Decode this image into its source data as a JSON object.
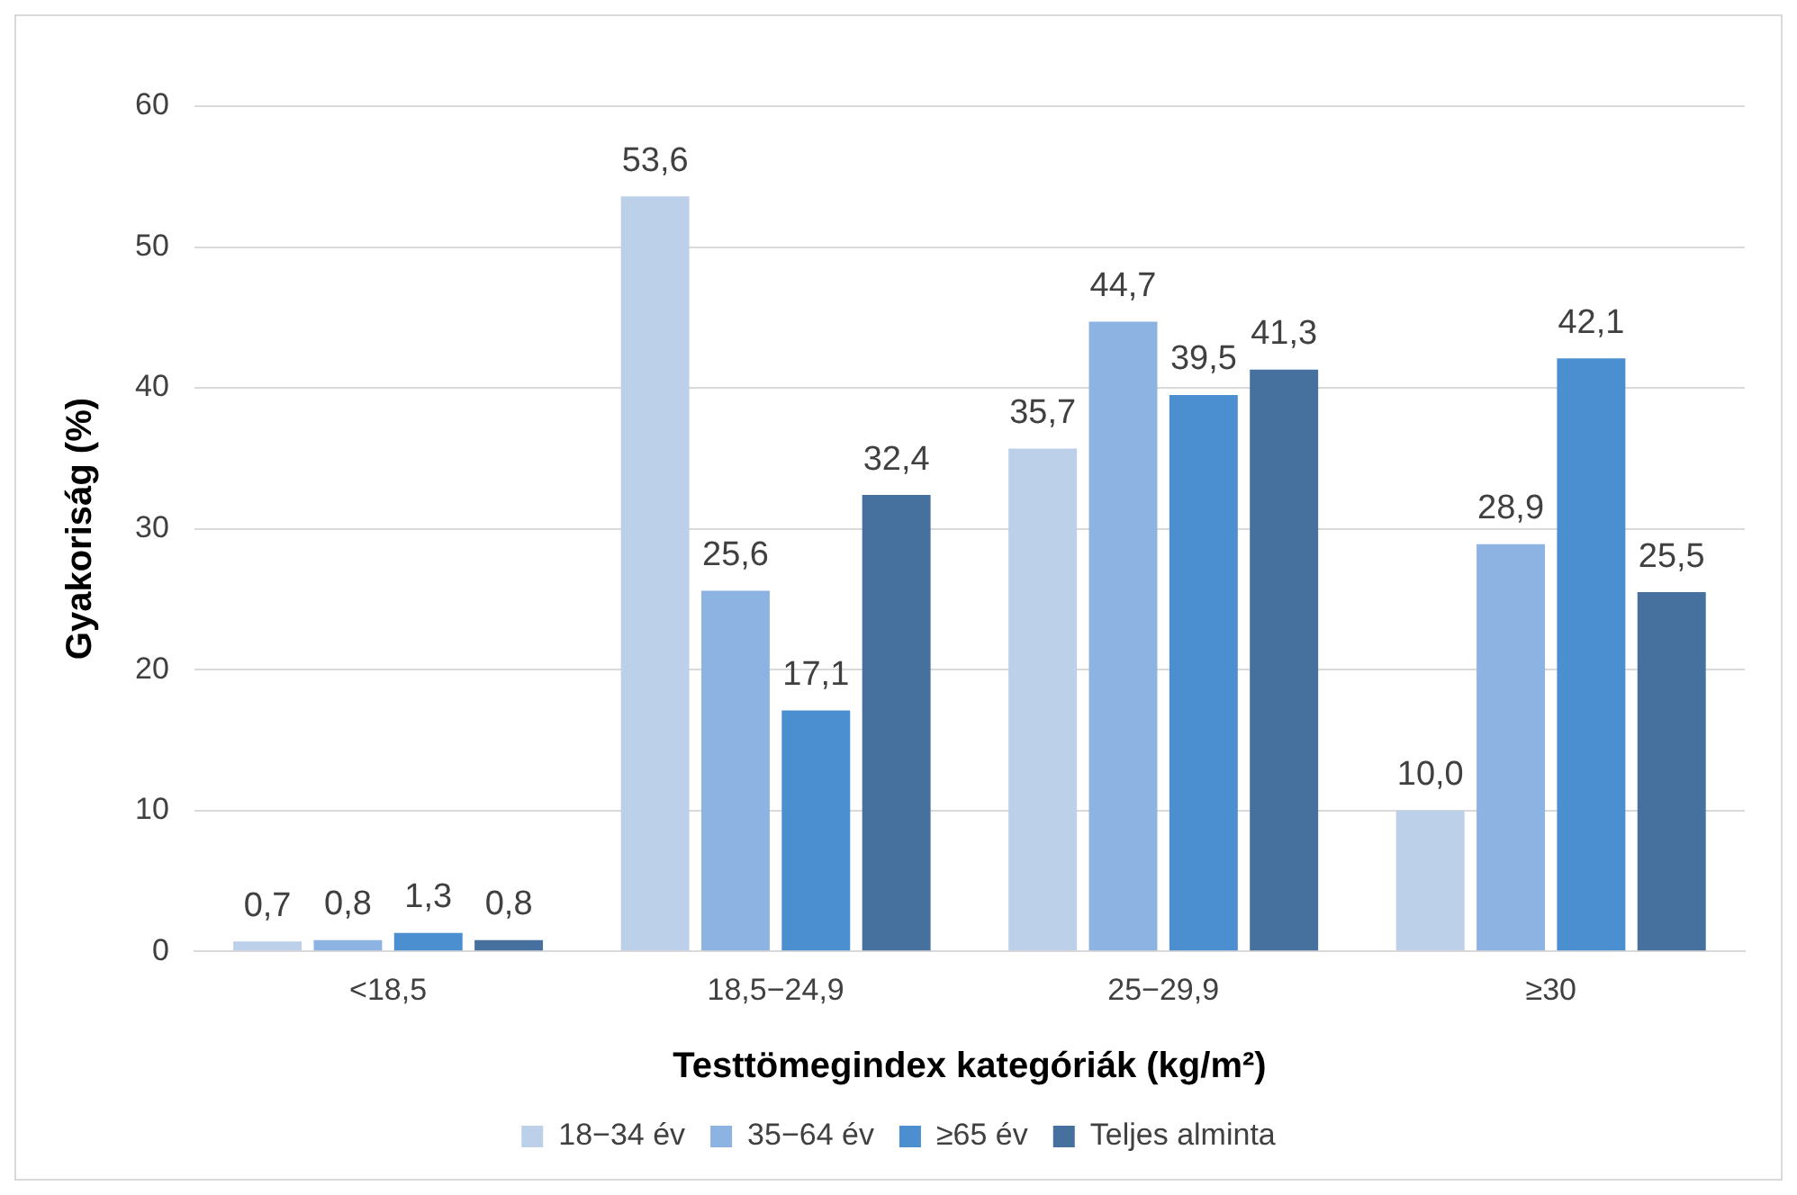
{
  "chart_data": {
    "type": "bar",
    "xlabel": "Testtömegindex kategóriák (kg/m²)",
    "ylabel": "Gyakoriság (%)",
    "categories": [
      "<18,5",
      "18,5−24,9",
      "25−29,9",
      "≥30"
    ],
    "series": [
      {
        "name": "18−34 év",
        "color": "#bdd0ea",
        "values": [
          0.7,
          53.6,
          35.7,
          10.0
        ],
        "value_labels": [
          "0,7",
          "53,6",
          "35,7",
          "10,0"
        ]
      },
      {
        "name": "35−64 év",
        "color": "#8db3e2",
        "values": [
          0.8,
          25.6,
          44.7,
          28.9
        ],
        "value_labels": [
          "0,8",
          "25,6",
          "44,7",
          "28,9"
        ]
      },
      {
        "name": "≥65 év",
        "color": "#4b8fd1",
        "values": [
          1.3,
          17.1,
          39.5,
          42.1
        ],
        "value_labels": [
          "1,3",
          "17,1",
          "39,5",
          "42,1"
        ]
      },
      {
        "name": "Teljes alminta",
        "color": "#46719f",
        "values": [
          0.8,
          32.4,
          41.3,
          25.5
        ],
        "value_labels": [
          "0,8",
          "32,4",
          "41,3",
          "25,5"
        ]
      }
    ],
    "ylim": [
      0,
      60
    ],
    "yticks": [
      0,
      10,
      20,
      30,
      40,
      50,
      60
    ],
    "grid": "y",
    "legend": "bottom"
  }
}
